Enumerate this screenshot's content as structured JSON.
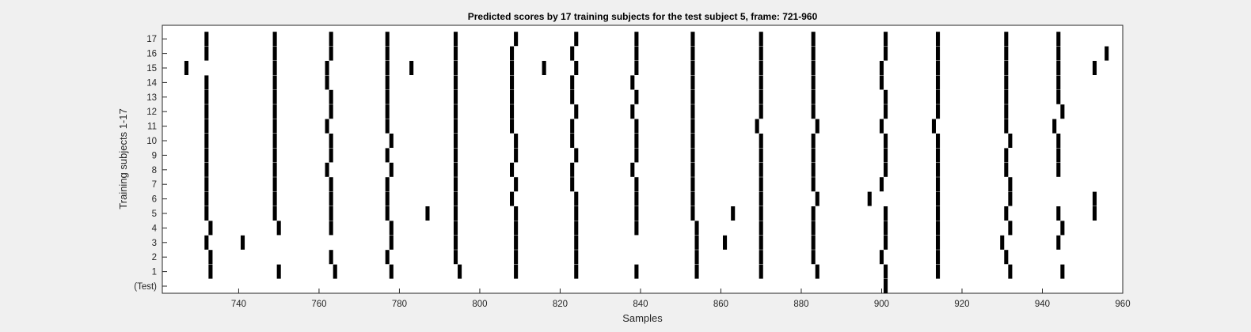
{
  "chart_data": {
    "type": "event-raster",
    "title": "Predicted scores by 17 training subjects for the test subject 5, frame: 721-960",
    "xlabel": "Samples",
    "ylabel": "Training subjects 1-17",
    "xlim": [
      721,
      960
    ],
    "x_ticks": [
      740,
      760,
      780,
      800,
      820,
      840,
      860,
      880,
      900,
      920,
      940,
      960
    ],
    "y_tick_labels": [
      "(Test)",
      "1",
      "2",
      "3",
      "4",
      "5",
      "6",
      "7",
      "8",
      "9",
      "10",
      "11",
      "12",
      "13",
      "14",
      "15",
      "16",
      "17"
    ],
    "grid": false,
    "colors": {
      "background": "#f0f0f0",
      "plot_area": "#ffffff",
      "marks": "#000000",
      "axis": "#262626"
    },
    "series": [
      {
        "name": "(Test)",
        "events": [
          901
        ]
      },
      {
        "name": "1",
        "events": [
          733,
          750,
          764,
          778,
          795,
          809,
          824,
          839,
          854,
          870,
          884,
          901,
          914,
          932,
          945
        ]
      },
      {
        "name": "2",
        "events": [
          733,
          763,
          777,
          794,
          809,
          824,
          854,
          870,
          883,
          900,
          914,
          931
        ]
      },
      {
        "name": "3",
        "events": [
          732,
          741,
          778,
          794,
          809,
          824,
          854,
          861,
          870,
          883,
          901,
          914,
          930,
          944
        ]
      },
      {
        "name": "4",
        "events": [
          733,
          750,
          763,
          778,
          794,
          809,
          824,
          839,
          854,
          870,
          883,
          901,
          914,
          932,
          945
        ]
      },
      {
        "name": "5",
        "events": [
          732,
          749,
          763,
          777,
          787,
          794,
          809,
          824,
          839,
          853,
          863,
          870,
          883,
          901,
          914,
          931,
          944,
          953
        ]
      },
      {
        "name": "6",
        "events": [
          732,
          749,
          763,
          777,
          794,
          808,
          824,
          839,
          853,
          870,
          884,
          897,
          914,
          932,
          953
        ]
      },
      {
        "name": "7",
        "events": [
          732,
          749,
          763,
          777,
          794,
          809,
          823,
          839,
          853,
          870,
          883,
          900,
          914,
          932
        ]
      },
      {
        "name": "8",
        "events": [
          732,
          749,
          762,
          778,
          794,
          808,
          823,
          838,
          853,
          870,
          883,
          901,
          914,
          931,
          944
        ]
      },
      {
        "name": "9",
        "events": [
          732,
          749,
          763,
          777,
          794,
          809,
          824,
          839,
          853,
          870,
          883,
          901,
          914,
          931,
          944
        ]
      },
      {
        "name": "10",
        "events": [
          732,
          749,
          763,
          778,
          794,
          809,
          823,
          839,
          853,
          870,
          883,
          901,
          914,
          932,
          944
        ]
      },
      {
        "name": "11",
        "events": [
          732,
          749,
          762,
          777,
          794,
          808,
          823,
          839,
          853,
          869,
          884,
          900,
          913,
          931,
          943
        ]
      },
      {
        "name": "12",
        "events": [
          732,
          749,
          763,
          777,
          794,
          808,
          824,
          838,
          853,
          870,
          883,
          901,
          914,
          931,
          945
        ]
      },
      {
        "name": "13",
        "events": [
          732,
          749,
          763,
          777,
          794,
          808,
          823,
          839,
          853,
          870,
          883,
          901,
          914,
          931,
          944
        ]
      },
      {
        "name": "14",
        "events": [
          732,
          749,
          762,
          777,
          794,
          808,
          823,
          838,
          853,
          870,
          883,
          900,
          914,
          931,
          944
        ]
      },
      {
        "name": "15",
        "events": [
          727,
          749,
          762,
          777,
          783,
          794,
          808,
          816,
          824,
          839,
          853,
          870,
          883,
          900,
          914,
          931,
          944,
          953
        ]
      },
      {
        "name": "16",
        "events": [
          732,
          749,
          763,
          777,
          794,
          808,
          823,
          839,
          853,
          870,
          883,
          901,
          914,
          931,
          944,
          956
        ]
      },
      {
        "name": "17",
        "events": [
          732,
          749,
          763,
          777,
          794,
          809,
          824,
          839,
          853,
          870,
          883,
          901,
          914,
          931,
          944
        ]
      }
    ]
  }
}
